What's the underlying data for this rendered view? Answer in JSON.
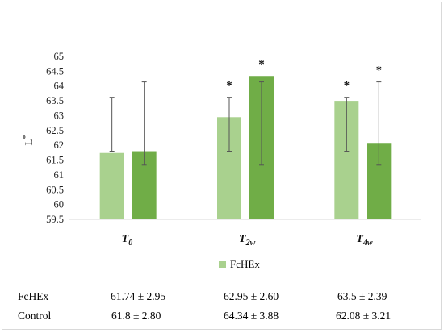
{
  "chart_data": {
    "type": "bar",
    "ylabel": "L*",
    "ylim": [
      59.5,
      65
    ],
    "yticks": [
      "59.5",
      "60",
      "60.5",
      "61",
      "61.5",
      "62",
      "62.5",
      "63",
      "63.5",
      "64",
      "64.5",
      "65"
    ],
    "categories": [
      {
        "base": "T",
        "sub": "0"
      },
      {
        "base": "T",
        "sub": "2w"
      },
      {
        "base": "T",
        "sub": "4w"
      }
    ],
    "series": [
      {
        "name": "FcHEx",
        "color": "#a9d18e",
        "values": [
          61.74,
          62.95,
          63.5
        ],
        "errors": [
          [
            61.8,
            63.62
          ],
          [
            61.8,
            63.62
          ],
          [
            61.8,
            63.62
          ]
        ],
        "significance": [
          "",
          "*",
          "*"
        ]
      },
      {
        "color": "#70ad47",
        "values": [
          61.8,
          64.34,
          62.08
        ],
        "errors": [
          [
            61.33,
            64.14
          ],
          [
            61.33,
            64.14
          ],
          [
            61.33,
            64.14
          ]
        ],
        "significance": [
          "",
          "*",
          "*"
        ]
      }
    ],
    "legend": {
      "label": "FcHEx",
      "placement": "bottom"
    },
    "grid": false
  },
  "stats_table": {
    "rows": [
      {
        "label": "FcHEx",
        "cells": [
          "61.74 ± 2.95",
          "62.95 ± 2.60",
          "63.5 ± 2.39"
        ]
      },
      {
        "label": "Control",
        "cells": [
          "61.8 ± 2.80",
          "64.34 ± 3.88",
          "62.08 ± 3.21"
        ]
      }
    ]
  }
}
